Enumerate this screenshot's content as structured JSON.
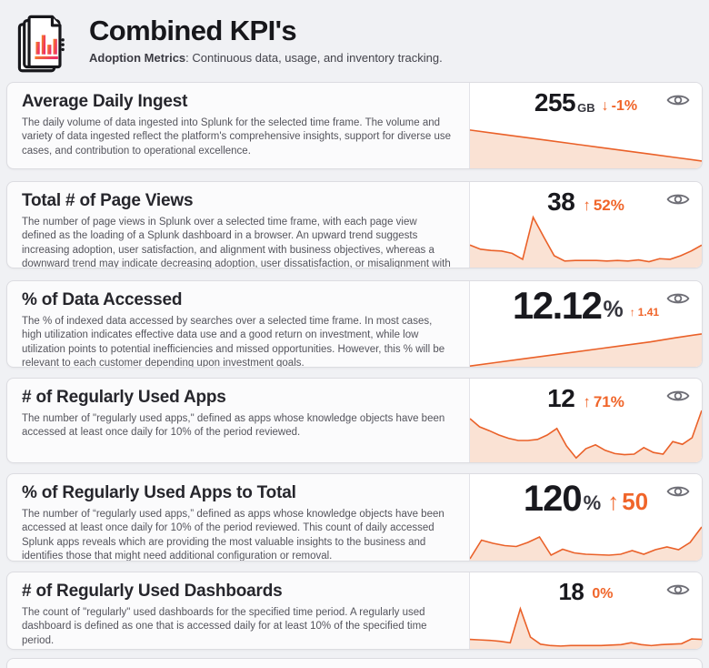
{
  "header": {
    "title": "Combined KPI's",
    "subtitle_bold": "Adoption Metrics",
    "subtitle_rest": ": Continuous data, usage, and inventory tracking.",
    "icon": "stacked-report-pages-icon"
  },
  "colors": {
    "accent": "#ea6129",
    "trend": "#f0652a",
    "spark_fill": "#fae2d4",
    "icon_gradient_start": "#f6871f",
    "icon_gradient_end": "#ee2a6b",
    "page_background": "#f0f1f4",
    "card_border": "#dcdce1"
  },
  "cards": [
    {
      "title": "Average Daily Ingest",
      "description": "The daily volume of data ingested into Splunk for the selected time frame. The volume and variety of data ingested reflect the platform's comprehensive insights, support for diverse use cases, and contribution to operational excellence.",
      "value": "255",
      "suffix": "GB",
      "trend_arrow": "↓",
      "trend_text": "-1%"
    },
    {
      "title": "Total # of Page Views",
      "description": "The number of page views in Splunk over a selected time frame, with each page view defined as the loading of a Splunk dashboard in a browser. An upward trend suggests increasing adoption, user satisfaction, and alignment with business objectives, whereas a downward trend may indicate decreasing adoption, user dissatisfaction, or misalignment with goals.",
      "value": "38",
      "suffix": "",
      "trend_arrow": "↑",
      "trend_text": "52%"
    },
    {
      "title": "% of Data Accessed",
      "description": "The % of indexed data accessed by searches over a selected time frame. In most cases, high utilization indicates effective data use and a good return on investment, while low utilization points to potential inefficiencies and missed opportunities. However, this % will be relevant to each customer depending upon investment goals.",
      "value": "12.12",
      "suffix": "%",
      "trend_arrow": "↑",
      "trend_text": "1.41"
    },
    {
      "title": "# of Regularly Used Apps",
      "description": "The number of \"regularly used apps,\" defined as apps whose knowledge objects have been accessed at least once daily for 10% of the period reviewed.",
      "value": "12",
      "suffix": "",
      "trend_arrow": "↑",
      "trend_text": "71%"
    },
    {
      "title": "% of Regularly Used Apps to Total",
      "description": "The number of “regularly used apps,” defined as apps whose knowledge objects have been accessed at least once daily for 10% of the period reviewed. This count of daily accessed Splunk apps reveals which are providing the most valuable insights to the business and identifies those that might need additional configuration or removal.",
      "value": "120",
      "suffix": "%",
      "trend_arrow": "↑",
      "trend_text": "50"
    },
    {
      "title": "# of Regularly Used Dashboards",
      "description": "The count of \"regularly\" used dashboards for the specified time period. A regularly used dashboard is defined as one that is accessed daily for at least 10% of the specified time period.",
      "value": "18",
      "suffix": "",
      "trend_arrow": "",
      "trend_text": "0%"
    }
  ],
  "chart_data": [
    {
      "type": "area",
      "title": "Average Daily Ingest sparkline",
      "axes_shown": false,
      "yscale": "relative 0-100",
      "values": [
        78,
        71,
        64,
        57,
        50,
        43,
        36,
        29,
        22,
        15
      ]
    },
    {
      "type": "area",
      "title": "Total # of Page Views sparkline",
      "axes_shown": false,
      "yscale": "relative 0-100",
      "values": [
        38,
        31,
        29,
        28,
        24,
        14,
        85,
        52,
        20,
        11,
        12,
        12,
        12,
        11,
        12,
        11,
        13,
        10,
        15,
        14,
        20,
        28,
        38
      ]
    },
    {
      "type": "area",
      "title": "% of Data Accessed sparkline",
      "axes_shown": false,
      "yscale": "relative 0-100",
      "values": [
        2,
        11,
        20,
        29,
        38,
        47,
        56,
        65,
        76,
        86
      ]
    },
    {
      "type": "area",
      "title": "# of Regularly Used Apps sparkline",
      "axes_shown": false,
      "yscale": "relative 0-100",
      "values": [
        80,
        65,
        58,
        50,
        44,
        40,
        40,
        42,
        50,
        62,
        30,
        8,
        25,
        32,
        22,
        16,
        14,
        15,
        27,
        18,
        15,
        38,
        33,
        45,
        95
      ]
    },
    {
      "type": "area",
      "title": "% of Regularly Used Apps to Total sparkline",
      "axes_shown": false,
      "yscale": "relative 0-100",
      "values": [
        4,
        45,
        38,
        33,
        31,
        40,
        52,
        12,
        25,
        17,
        14,
        13,
        12,
        14,
        22,
        14,
        24,
        30,
        24,
        40,
        74
      ]
    },
    {
      "type": "area",
      "title": "# of Regularly Used Dashboards sparkline",
      "axes_shown": false,
      "yscale": "relative 0-100",
      "values": [
        20,
        19,
        18,
        16,
        13,
        85,
        25,
        10,
        7,
        6,
        7,
        7,
        7,
        7,
        8,
        9,
        13,
        9,
        7,
        9,
        10,
        11,
        21,
        20
      ]
    }
  ]
}
